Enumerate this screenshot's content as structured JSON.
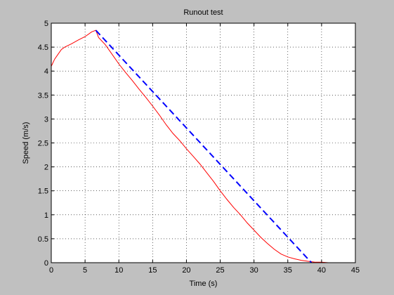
{
  "window": {
    "background": "#c0c0c0"
  },
  "chart_data": {
    "type": "line",
    "title": "Runout test",
    "xlabel": "Time (s)",
    "ylabel": "Speed (m/s)",
    "xlim": [
      0,
      45
    ],
    "ylim": [
      0,
      5
    ],
    "grid": true,
    "legend": "none",
    "xticks": [
      0,
      5,
      10,
      15,
      20,
      25,
      30,
      35,
      40,
      45
    ],
    "yticks": [
      0,
      0.5,
      1,
      1.5,
      2,
      2.5,
      3,
      3.5,
      4,
      4.5,
      5
    ],
    "xtick_labels": [
      "0",
      "5",
      "10",
      "15",
      "20",
      "25",
      "30",
      "35",
      "40",
      "45"
    ],
    "ytick_labels": [
      "0",
      "0.5",
      "1",
      "1.5",
      "2",
      "2.5",
      "3",
      "3.5",
      "4",
      "4.5",
      "5"
    ],
    "series": [
      {
        "style": "solid",
        "color": "#ff0000",
        "x": [
          0,
          0.5,
          1,
          1.5,
          2,
          3,
          4,
          5,
          6,
          6.6,
          7,
          8,
          9,
          10,
          11,
          12,
          13,
          14,
          15,
          16,
          17,
          18,
          19,
          20,
          21,
          22,
          23,
          24,
          25,
          26,
          27,
          28,
          29,
          30,
          31,
          32,
          33,
          34,
          35,
          36,
          37,
          38,
          38.5,
          39,
          40,
          41,
          43
        ],
        "y": [
          4.1,
          4.25,
          4.35,
          4.45,
          4.5,
          4.57,
          4.65,
          4.72,
          4.82,
          4.85,
          4.7,
          4.55,
          4.35,
          4.15,
          3.97,
          3.8,
          3.62,
          3.45,
          3.27,
          3.08,
          2.88,
          2.7,
          2.55,
          2.38,
          2.22,
          2.06,
          1.88,
          1.7,
          1.5,
          1.32,
          1.15,
          1.0,
          0.83,
          0.68,
          0.53,
          0.4,
          0.28,
          0.18,
          0.12,
          0.08,
          0.05,
          0.03,
          0.02,
          0.01,
          0.01,
          0.0,
          0.0
        ]
      },
      {
        "style": "dashed",
        "color": "#0000ff",
        "x": [
          6.6,
          38.5
        ],
        "y": [
          4.85,
          0.0
        ]
      }
    ]
  }
}
